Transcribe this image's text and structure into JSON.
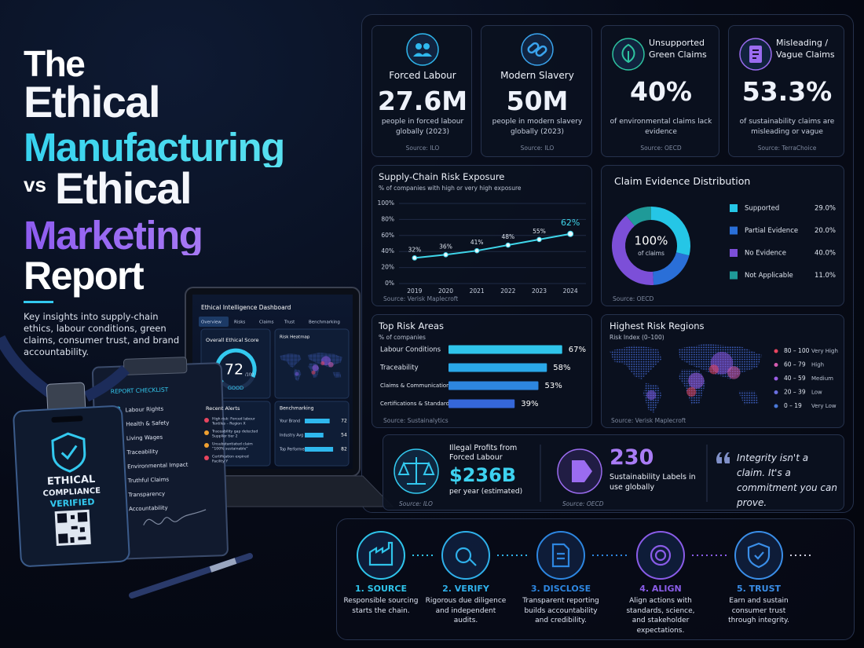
{
  "header": {
    "title_lines": [
      "The",
      "Ethical",
      "Manufacturing",
      "vs",
      "Ethical",
      "Marketing",
      "Report"
    ],
    "subtitle": "Key insights into supply-chain ethics, labour conditions, green claims, consumer trust, and brand accountability."
  },
  "stat_cards": [
    {
      "label": "Forced Labour",
      "value": "27.6M",
      "description": "people in forced labour globally (2023)",
      "source": "Source: ILO"
    },
    {
      "label": "Modern Slavery",
      "value": "50M",
      "description": "people in modern slavery globally (2023)",
      "source": "Source: ILO"
    },
    {
      "label": "Unsupported Green Claims",
      "value": "40%",
      "description": "of environmental claims lack evidence",
      "source": "Source: OECD"
    },
    {
      "label": "Misleading / Vague Claims",
      "value": "53.3%",
      "description": "of sustainability claims are misleading or vague",
      "source": "Source: TerraChoice"
    }
  ],
  "chart_data": [
    {
      "type": "line",
      "title": "Supply-Chain Risk Exposure",
      "subtitle": "% of companies with high or very high exposure",
      "categories": [
        "2019",
        "2020",
        "2021",
        "2022",
        "2023",
        "2024"
      ],
      "values": [
        32,
        36,
        41,
        48,
        55,
        62
      ],
      "value_labels": [
        "32%",
        "36%",
        "41%",
        "48%",
        "55%",
        "62%"
      ],
      "color": "#3fd6ea",
      "ylim": [
        0,
        100
      ],
      "yticks": [
        {
          "value": 0,
          "label": "0%"
        },
        {
          "value": 20,
          "label": "20%"
        },
        {
          "value": 40,
          "label": "40%"
        },
        {
          "value": 60,
          "label": "60%"
        },
        {
          "value": 80,
          "label": "80%"
        },
        {
          "value": 100,
          "label": "100%"
        }
      ],
      "grid": true,
      "source": "Source: Verisk Maplecroft"
    },
    {
      "type": "pie",
      "title": "Claim Evidence Distribution",
      "categories": [
        "Supported",
        "Partial Evidence",
        "No Evidence",
        "Not Applicable"
      ],
      "values": [
        29,
        20,
        40,
        11
      ],
      "value_labels": [
        "29.0%",
        "20.0%",
        "40.0%",
        "11.0%"
      ],
      "colors": [
        "#25c6e6",
        "#2a6fd8",
        "#7c4fd8",
        "#1f9a98"
      ],
      "center_label": "100%",
      "center_sublabel": "of claims",
      "source": "Source: OECD"
    },
    {
      "type": "bar",
      "orientation": "horizontal",
      "title": "Top Risk Areas",
      "subtitle": "% of companies",
      "categories": [
        "Labour Conditions",
        "Traceability",
        "Claims & Communication",
        "Certifications & Standards"
      ],
      "values": [
        67,
        58,
        53,
        39
      ],
      "value_labels": [
        "67%",
        "58%",
        "53%",
        "39%"
      ],
      "colors": [
        "#2fc4ea",
        "#2aa8e8",
        "#2d86e0",
        "#3567d8"
      ],
      "xlim": [
        0,
        100
      ],
      "source": "Source: Sustainalytics"
    }
  ],
  "risk_regions": {
    "title": "Highest Risk Regions",
    "subtitle": "Risk Index (0–100)",
    "legend": [
      {
        "range": "80 – 100",
        "level": "Very High",
        "color": "#e8455f"
      },
      {
        "range": "60 – 79",
        "level": "High",
        "color": "#d45bb0"
      },
      {
        "range": "40 – 59",
        "level": "Medium",
        "color": "#9b5de5"
      },
      {
        "range": "20 – 39",
        "level": "Low",
        "color": "#6a6fe0"
      },
      {
        "range": "0 – 19",
        "level": "Very Low",
        "color": "#4a78d8"
      }
    ],
    "source": "Source: Verisk Maplecroft"
  },
  "highlights": {
    "profits": {
      "label": "Illegal Profits from Forced Labour",
      "value": "$236B",
      "description": "per year (estimated)",
      "source": "Source: ILO"
    },
    "labels": {
      "value": "230",
      "description": "Sustainability Labels in use globally",
      "source": "Source: OECD"
    },
    "quote": "Integrity isn't a claim. It's a commitment you can prove."
  },
  "steps": [
    {
      "title": "1. SOURCE",
      "text": "Responsible sourcing starts the chain."
    },
    {
      "title": "2. VERIFY",
      "text": "Rigorous due diligence and independent audits."
    },
    {
      "title": "3. DISCLOSE",
      "text": "Transparent reporting builds accountability and credibility."
    },
    {
      "title": "4. ALIGN",
      "text": "Align actions with standards, science, and stakeholder expectations."
    },
    {
      "title": "5. TRUST",
      "text": "Earn and sustain consumer trust through integrity."
    }
  ],
  "dashboard": {
    "title": "Ethical Intelligence Dashboard",
    "tabs": [
      "Overview",
      "Risks",
      "Claims",
      "Trust",
      "Benchmarking"
    ],
    "score_label": "Overall Ethical Score",
    "score": "72",
    "score_max": "/100",
    "score_rating": "GOOD",
    "heatmap_label": "Risk Heatmap",
    "alerts_label": "Recent Alerts",
    "alerts": [
      [
        "High risk: Forced labour",
        "Textiles – Region X"
      ],
      [
        "Traceability gap detected",
        "Supplier tier 2"
      ],
      [
        "Unsubstantiated claim",
        "“100% sustainable”"
      ],
      [
        "Certification expired",
        "Facility Y"
      ]
    ],
    "benchmark_label": "Benchmarking",
    "benchmark": {
      "categories": [
        "Your Brand",
        "Industry Avg",
        "Top Performers"
      ],
      "values": [
        72,
        54,
        82
      ],
      "xlim": [
        0,
        100
      ]
    }
  },
  "checklist": {
    "title": "REPORT CHECKLIST",
    "items": [
      "Labour Rights",
      "Health & Safety",
      "Living Wages",
      "Traceability",
      "Environmental Impact",
      "Truthful Claims",
      "Transparency",
      "Accountability"
    ]
  },
  "badge": {
    "lines": [
      "ETHICAL",
      "COMPLIANCE",
      "VERIFIED"
    ]
  }
}
